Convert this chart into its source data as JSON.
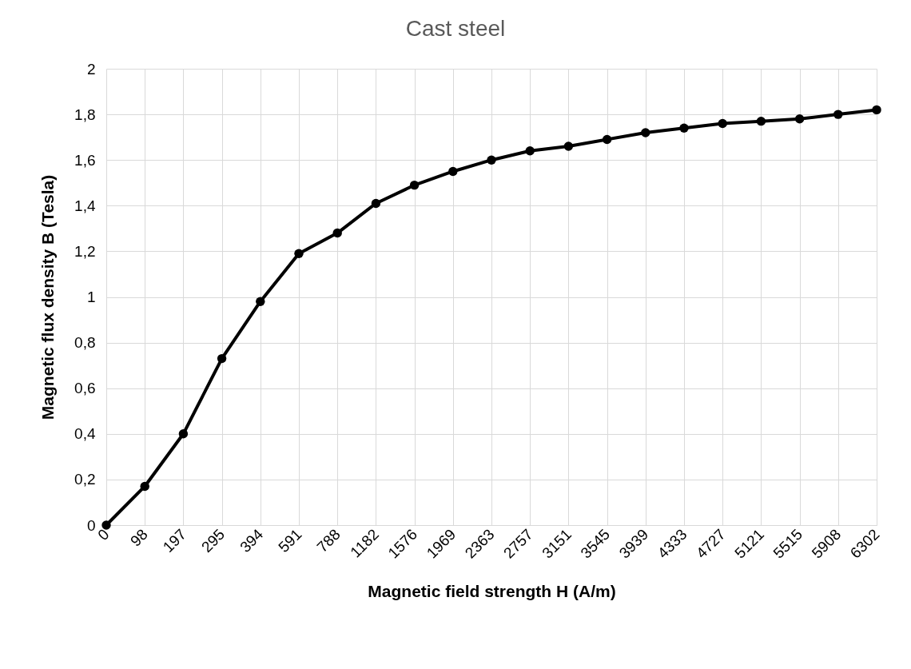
{
  "chart_data": {
    "type": "line",
    "title": "Cast steel",
    "xlabel": "Magnetic field strength H (A/m)",
    "ylabel": "Magnetic flux density B (Tesla)",
    "categories": [
      "0",
      "98",
      "197",
      "295",
      "394",
      "591",
      "788",
      "1182",
      "1576",
      "1969",
      "2363",
      "2757",
      "3151",
      "3545",
      "3939",
      "4333",
      "4727",
      "5121",
      "5515",
      "5908",
      "6302"
    ],
    "series": [
      {
        "color": "#000000",
        "values": [
          0,
          0.17,
          0.4,
          0.73,
          0.98,
          1.19,
          1.28,
          1.41,
          1.49,
          1.55,
          1.6,
          1.64,
          1.66,
          1.69,
          1.72,
          1.74,
          1.76,
          1.77,
          1.78,
          1.8,
          1.82
        ]
      }
    ],
    "ylim": [
      0,
      2
    ],
    "yticks": [
      0,
      {
        "value": 0.2,
        "label": "0,2"
      },
      {
        "value": 0.4,
        "label": "0,4"
      },
      {
        "value": 0.6,
        "label": "0,6"
      },
      {
        "value": 0.8,
        "label": "0,8"
      },
      1,
      {
        "value": 1.2,
        "label": "1,2"
      },
      {
        "value": 1.4,
        "label": "1,4"
      },
      {
        "value": 1.6,
        "label": "1,6"
      },
      {
        "value": 1.8,
        "label": "1,8"
      },
      2
    ],
    "grid": true,
    "marker": "circle",
    "line_style": "solid"
  }
}
